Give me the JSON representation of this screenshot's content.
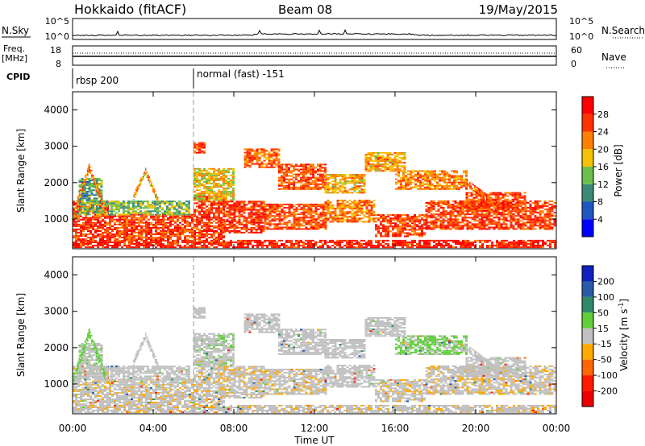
{
  "chart_data": {
    "type": "heatmap",
    "header": {
      "station": "Hokkaido (fitACF)",
      "beam": "Beam 08",
      "date": "19/May/2015"
    },
    "time_axis": {
      "label": "Time UT",
      "range_hours": [
        0,
        24
      ],
      "ticks": [
        "00:00",
        "04:00",
        "08:00",
        "12:00",
        "16:00",
        "20:00",
        "00:00"
      ]
    },
    "nsky_panel": {
      "left_label": "N.Sky",
      "right_label": "N.Search",
      "left_ticks": [
        "10^5",
        "10^0"
      ],
      "right_ticks": [
        "10^5",
        "10^0"
      ]
    },
    "freq_panel": {
      "left_label_line1": "Freq.",
      "left_label_line2": "[MHz]",
      "right_label": "Nave",
      "left_ticks": [
        "18",
        "8"
      ],
      "right_ticks": [
        "60",
        "0"
      ]
    },
    "cpid_panel": {
      "label": "CPID",
      "modes": [
        {
          "start_hour": 0.0,
          "name": "rbsp 200"
        },
        {
          "start_hour": 6.0,
          "name": "normal (fast) -151"
        }
      ]
    },
    "range_axis": {
      "label": "Slant Range [km]",
      "range_km": [
        180,
        4500
      ],
      "ticks": [
        1000,
        2000,
        3000,
        4000
      ]
    },
    "power_panel": {
      "colorbar_label": "Power [dB]",
      "colorbar_ticks": [
        "4",
        "8",
        "12",
        "16",
        "20",
        "24",
        "28"
      ],
      "colors": [
        "#0000ff",
        "#1f57c0",
        "#3b8a7a",
        "#6cc04a",
        "#f4c200",
        "#ff8000",
        "#ff3300",
        "#ff0000"
      ]
    },
    "velocity_panel": {
      "colorbar_label": "Velocity [m s-1]",
      "colorbar_ticks": [
        "200",
        "100",
        "50",
        "15",
        "-15",
        "-50",
        "-100",
        "-200"
      ],
      "colors": [
        "#1020c0",
        "#2a5aa8",
        "#2f8a6a",
        "#5fcf3a",
        "#c0c0c0",
        "#ffaa00",
        "#ff6600",
        "#ff1a00",
        "#ee0000"
      ]
    },
    "echo_regions": [
      {
        "t0": 0.0,
        "t1": 6.0,
        "r0": 200,
        "r1": 420,
        "power": 28,
        "velocity": -5
      },
      {
        "t0": 0.0,
        "t1": 1.8,
        "r0": 420,
        "r1": 1500,
        "power": 26,
        "velocity": -5
      },
      {
        "t0": 1.8,
        "t1": 6.0,
        "r0": 420,
        "r1": 1100,
        "power": 26,
        "velocity": -5
      },
      {
        "t0": 0.2,
        "t1": 5.8,
        "r0": 1100,
        "r1": 1500,
        "power": 14,
        "velocity": 0
      },
      {
        "t0": 0.3,
        "t1": 1.5,
        "r0": 1500,
        "r1": 2100,
        "power": 12,
        "velocity": 5
      },
      {
        "t0": 6.0,
        "t1": 24.0,
        "r0": 200,
        "r1": 420,
        "power": 28,
        "velocity": -5
      },
      {
        "t0": 6.0,
        "t1": 7.5,
        "r0": 420,
        "r1": 1600,
        "power": 27,
        "velocity": -5
      },
      {
        "t0": 7.5,
        "t1": 9.5,
        "r0": 600,
        "r1": 1500,
        "power": 27,
        "velocity": -5
      },
      {
        "t0": 9.5,
        "t1": 12.5,
        "r0": 700,
        "r1": 1400,
        "power": 25,
        "velocity": -5
      },
      {
        "t0": 12.5,
        "t1": 15.0,
        "r0": 900,
        "r1": 1500,
        "power": 22,
        "velocity": 0
      },
      {
        "t0": 15.0,
        "t1": 17.5,
        "r0": 500,
        "r1": 1100,
        "power": 26,
        "velocity": -5
      },
      {
        "t0": 17.5,
        "t1": 24.0,
        "r0": 700,
        "r1": 1500,
        "power": 26,
        "velocity": -5
      },
      {
        "t0": 6.0,
        "t1": 8.0,
        "r0": 1500,
        "r1": 2400,
        "power": 18,
        "velocity": 5
      },
      {
        "t0": 6.0,
        "t1": 6.6,
        "r0": 2800,
        "r1": 3100,
        "power": 25,
        "velocity": 0
      },
      {
        "t0": 8.5,
        "t1": 10.2,
        "r0": 2400,
        "r1": 2900,
        "power": 24,
        "velocity": 0
      },
      {
        "t0": 10.2,
        "t1": 12.5,
        "r0": 1800,
        "r1": 2500,
        "power": 25,
        "velocity": 0
      },
      {
        "t0": 12.5,
        "t1": 14.5,
        "r0": 1700,
        "r1": 2200,
        "power": 20,
        "velocity": 0
      },
      {
        "t0": 14.5,
        "t1": 16.5,
        "r0": 2300,
        "r1": 2800,
        "power": 20,
        "velocity": 0
      },
      {
        "t0": 16.0,
        "t1": 19.5,
        "r0": 1800,
        "r1": 2300,
        "power": 22,
        "velocity": 20
      },
      {
        "t0": 19.5,
        "t1": 22.5,
        "r0": 1200,
        "r1": 1700,
        "power": 25,
        "velocity": 0
      }
    ],
    "echo_tracks": [
      {
        "t0": 0.0,
        "t1": 0.8,
        "r0": 1100,
        "r1": 2400,
        "width": 220,
        "power": 22,
        "velocity": 30
      },
      {
        "t0": 0.8,
        "t1": 1.6,
        "r0": 2400,
        "r1": 1200,
        "width": 220,
        "power": 24,
        "velocity": 30
      },
      {
        "t0": 3.0,
        "t1": 3.6,
        "r0": 1600,
        "r1": 2300,
        "width": 180,
        "power": 20,
        "velocity": 0
      },
      {
        "t0": 3.6,
        "t1": 4.2,
        "r0": 2300,
        "r1": 1500,
        "width": 180,
        "power": 20,
        "velocity": 0
      },
      {
        "t0": 19.5,
        "t1": 21.0,
        "r0": 2000,
        "r1": 1400,
        "width": 200,
        "power": 25,
        "velocity": 0
      }
    ]
  }
}
